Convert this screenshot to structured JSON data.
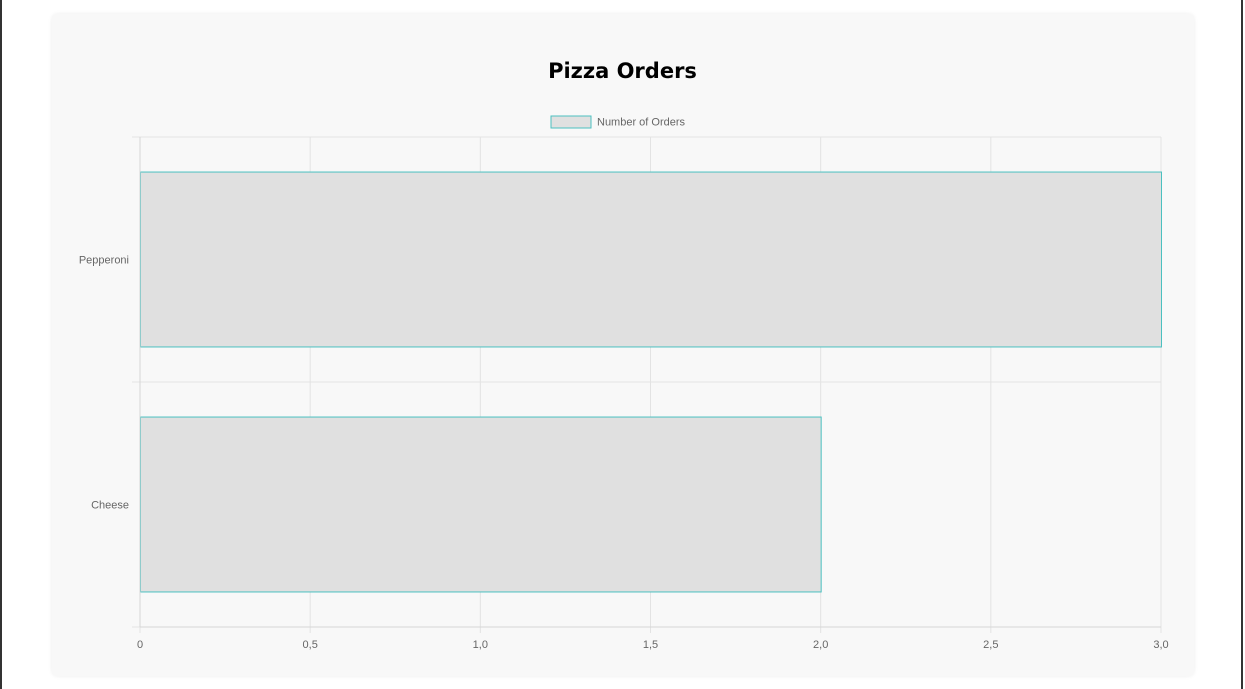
{
  "chart_data": {
    "type": "bar",
    "orientation": "horizontal",
    "title": "Pizza Orders",
    "categories": [
      "Pepperoni",
      "Cheese"
    ],
    "series": [
      {
        "name": "Number of Orders",
        "values": [
          3,
          2
        ]
      }
    ],
    "xlim": [
      0,
      3
    ],
    "x_ticks": [
      "0",
      "0,5",
      "1,0",
      "1,5",
      "2,0",
      "2,5",
      "3,0"
    ],
    "legend": "top",
    "grid": true,
    "colors": {
      "bar_fill": "#e0e0e0",
      "bar_border": "#4bc0c0",
      "grid": "#e3e3e3",
      "axis": "#d6d6d6"
    }
  }
}
